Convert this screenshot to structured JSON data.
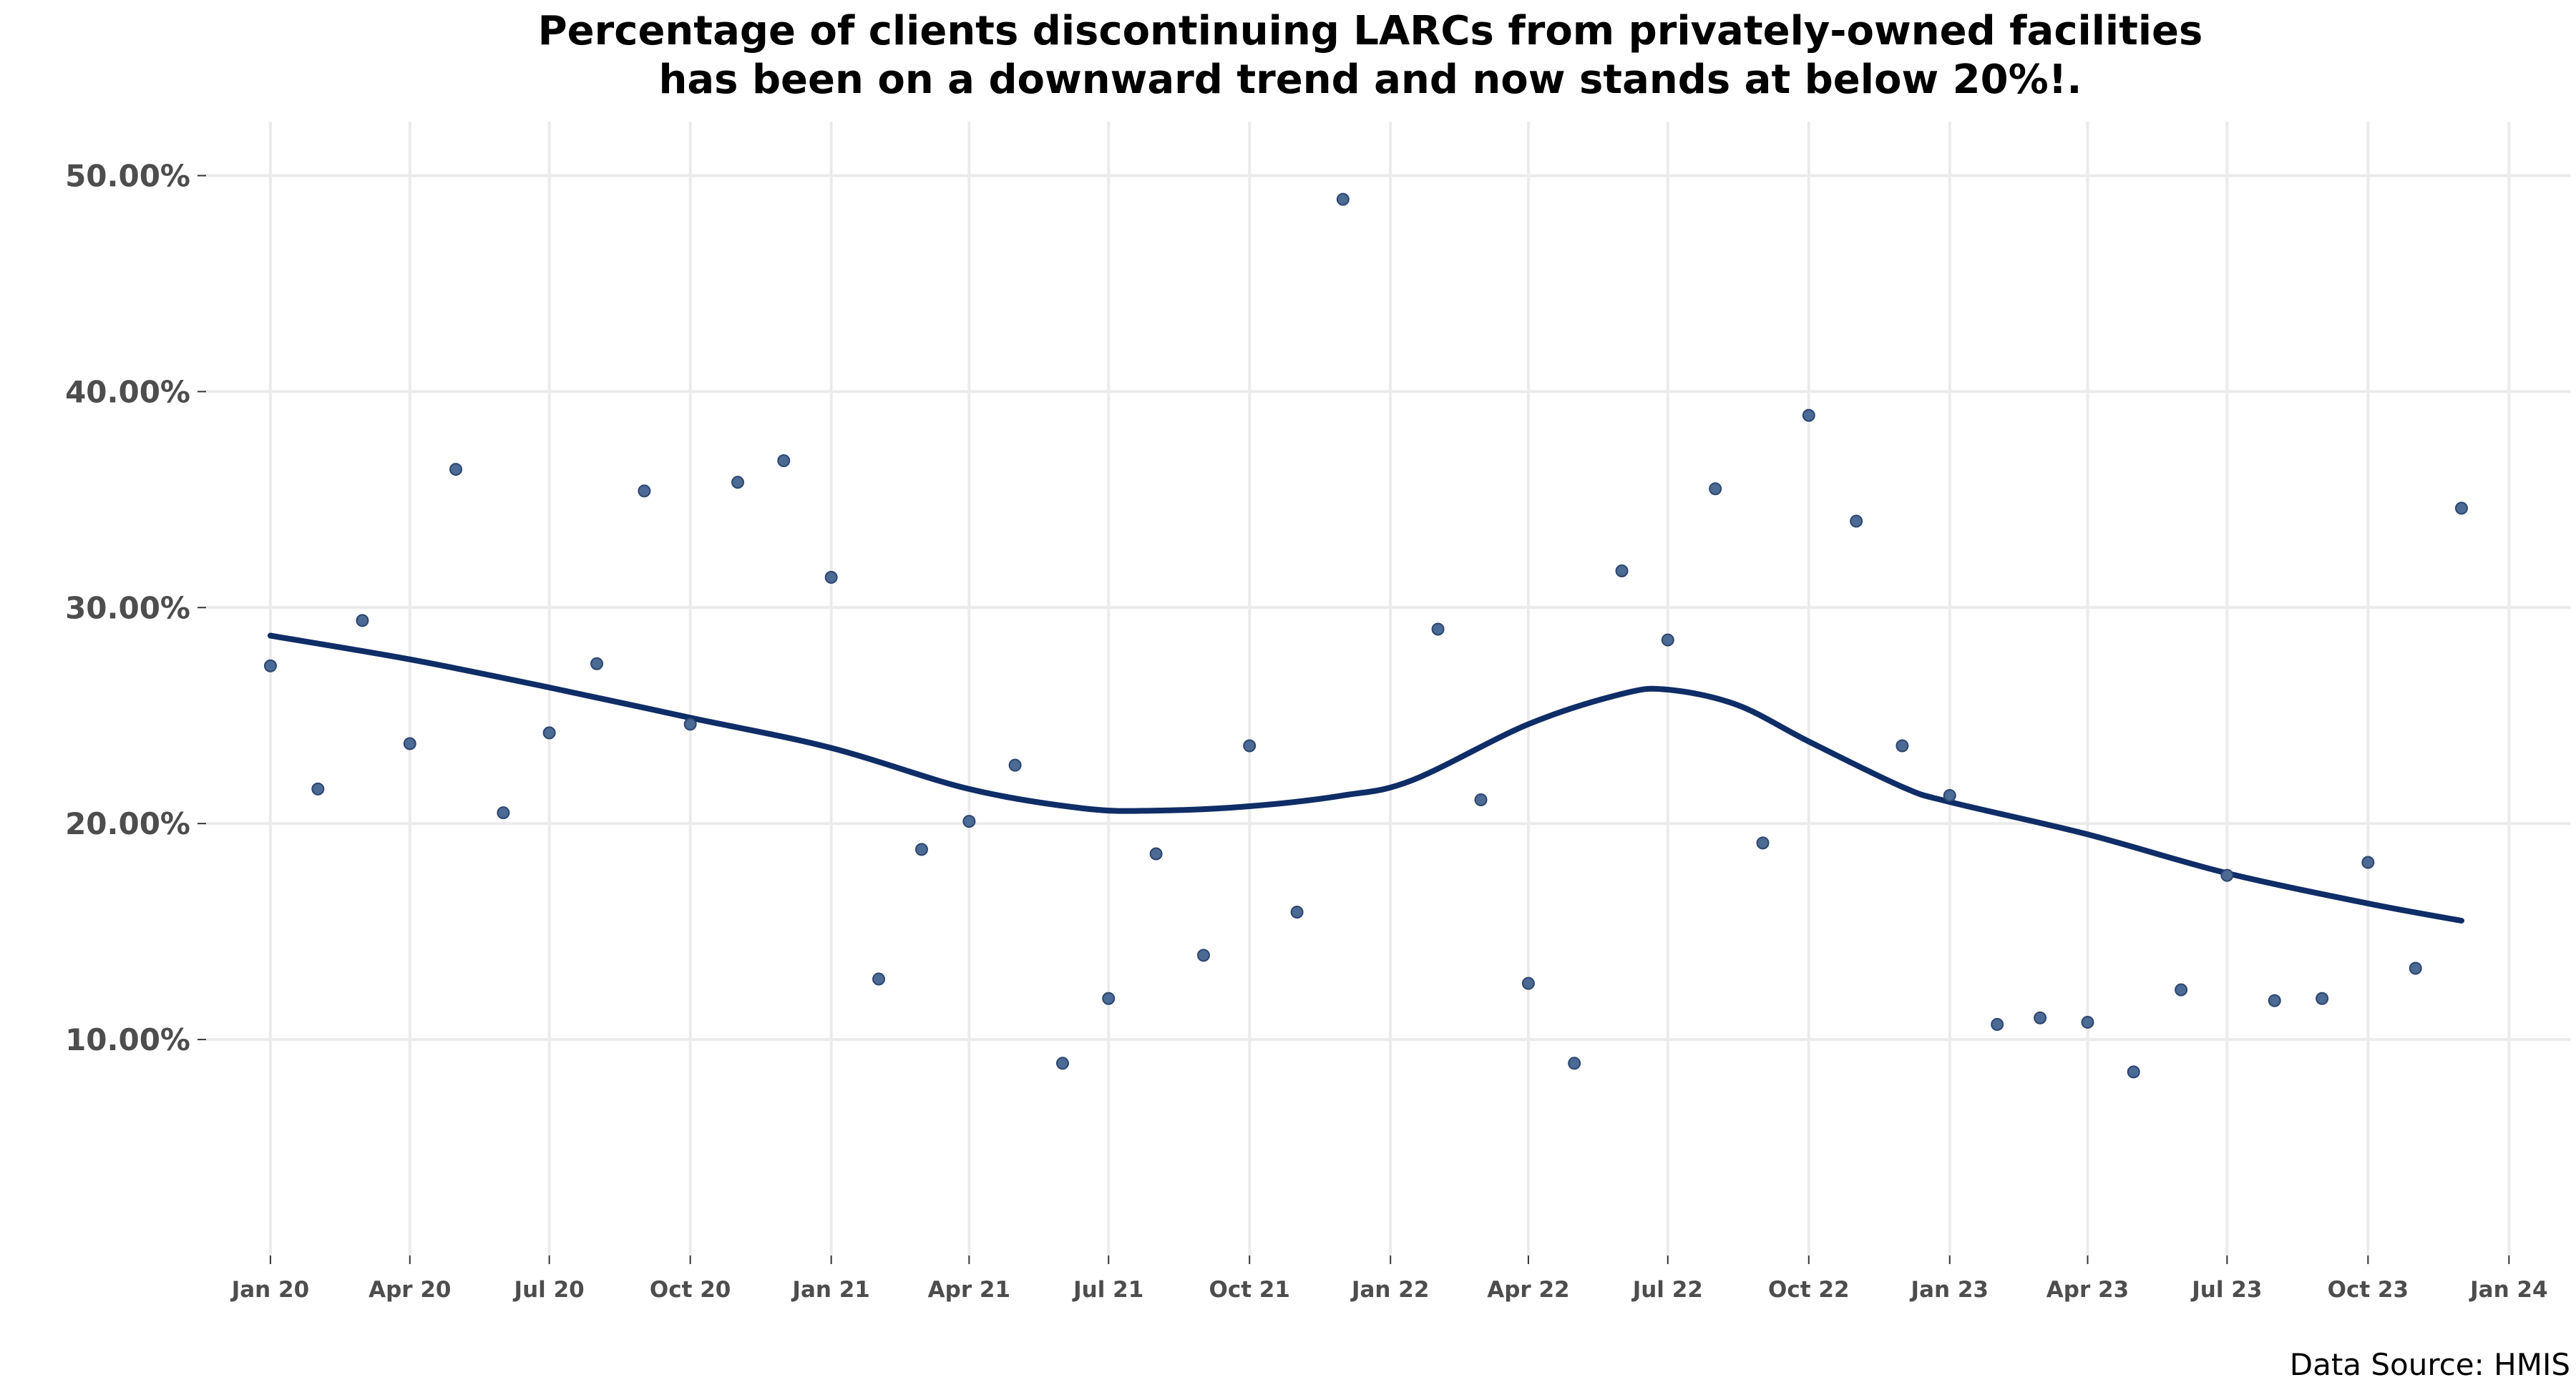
{
  "chart_data": {
    "type": "scatter",
    "title_lines": [
      "Percentage of clients discontinuing LARCs from privately-owned facilities",
      "has been on a downward trend and now stands at below 20%!."
    ],
    "xlabel": "",
    "ylabel": "",
    "caption": "Data Source: HMIS",
    "x_range": [
      "2019-11-20",
      "2024-02-10"
    ],
    "y_range": [
      0.0,
      0.525
    ],
    "grid": true,
    "x_ticks": [
      {
        "date": "2020-01-01",
        "label": "Jan 20"
      },
      {
        "date": "2020-04-01",
        "label": "Apr 20"
      },
      {
        "date": "2020-07-01",
        "label": "Jul 20"
      },
      {
        "date": "2020-10-01",
        "label": "Oct 20"
      },
      {
        "date": "2021-01-01",
        "label": "Jan 21"
      },
      {
        "date": "2021-04-01",
        "label": "Apr 21"
      },
      {
        "date": "2021-07-01",
        "label": "Jul 21"
      },
      {
        "date": "2021-10-01",
        "label": "Oct 21"
      },
      {
        "date": "2022-01-01",
        "label": "Jan 22"
      },
      {
        "date": "2022-04-01",
        "label": "Apr 22"
      },
      {
        "date": "2022-07-01",
        "label": "Jul 22"
      },
      {
        "date": "2022-10-01",
        "label": "Oct 22"
      },
      {
        "date": "2023-01-01",
        "label": "Jan 23"
      },
      {
        "date": "2023-04-01",
        "label": "Apr 23"
      },
      {
        "date": "2023-07-01",
        "label": "Jul 23"
      },
      {
        "date": "2023-10-01",
        "label": "Oct 23"
      },
      {
        "date": "2024-01-01",
        "label": "Jan 24"
      }
    ],
    "y_ticks": [
      {
        "value": 0.1,
        "label": "10.00%"
      },
      {
        "value": 0.2,
        "label": "20.00%"
      },
      {
        "value": 0.3,
        "label": "30.00%"
      },
      {
        "value": 0.4,
        "label": "40.00%"
      },
      {
        "value": 0.5,
        "label": "50.00%"
      }
    ],
    "points": [
      {
        "x": "2020-01-01",
        "y": 0.273
      },
      {
        "x": "2020-02-01",
        "y": 0.216
      },
      {
        "x": "2020-03-01",
        "y": 0.294
      },
      {
        "x": "2020-04-01",
        "y": 0.237
      },
      {
        "x": "2020-05-01",
        "y": 0.364
      },
      {
        "x": "2020-06-01",
        "y": 0.205
      },
      {
        "x": "2020-07-01",
        "y": 0.242
      },
      {
        "x": "2020-08-01",
        "y": 0.274
      },
      {
        "x": "2020-09-01",
        "y": 0.354
      },
      {
        "x": "2020-10-01",
        "y": 0.246
      },
      {
        "x": "2020-11-01",
        "y": 0.358
      },
      {
        "x": "2020-12-01",
        "y": 0.368
      },
      {
        "x": "2021-01-01",
        "y": 0.314
      },
      {
        "x": "2021-02-01",
        "y": 0.128
      },
      {
        "x": "2021-03-01",
        "y": 0.188
      },
      {
        "x": "2021-04-01",
        "y": 0.201
      },
      {
        "x": "2021-05-01",
        "y": 0.227
      },
      {
        "x": "2021-06-01",
        "y": 0.089
      },
      {
        "x": "2021-07-01",
        "y": 0.119
      },
      {
        "x": "2021-08-01",
        "y": 0.186
      },
      {
        "x": "2021-09-01",
        "y": 0.139
      },
      {
        "x": "2021-10-01",
        "y": 0.236
      },
      {
        "x": "2021-11-01",
        "y": 0.159
      },
      {
        "x": "2021-12-01",
        "y": 0.489
      },
      {
        "x": "2022-02-01",
        "y": 0.29
      },
      {
        "x": "2022-03-01",
        "y": 0.211
      },
      {
        "x": "2022-04-01",
        "y": 0.126
      },
      {
        "x": "2022-05-01",
        "y": 0.089
      },
      {
        "x": "2022-06-01",
        "y": 0.317
      },
      {
        "x": "2022-07-01",
        "y": 0.285
      },
      {
        "x": "2022-08-01",
        "y": 0.355
      },
      {
        "x": "2022-09-01",
        "y": 0.191
      },
      {
        "x": "2022-10-01",
        "y": 0.389
      },
      {
        "x": "2022-11-01",
        "y": 0.34
      },
      {
        "x": "2022-12-01",
        "y": 0.236
      },
      {
        "x": "2023-01-01",
        "y": 0.213
      },
      {
        "x": "2023-02-01",
        "y": 0.107
      },
      {
        "x": "2023-03-01",
        "y": 0.11
      },
      {
        "x": "2023-04-01",
        "y": 0.108
      },
      {
        "x": "2023-05-01",
        "y": 0.085
      },
      {
        "x": "2023-06-01",
        "y": 0.123
      },
      {
        "x": "2023-07-01",
        "y": 0.176
      },
      {
        "x": "2023-08-01",
        "y": 0.118
      },
      {
        "x": "2023-09-01",
        "y": 0.119
      },
      {
        "x": "2023-10-01",
        "y": 0.182
      },
      {
        "x": "2023-11-01",
        "y": 0.133
      },
      {
        "x": "2023-12-01",
        "y": 0.346
      }
    ],
    "trend": {
      "type": "smoothed line",
      "x": [
        "2020-01-01",
        "2020-04-01",
        "2020-07-01",
        "2020-10-01",
        "2021-01-01",
        "2021-04-01",
        "2021-06-15",
        "2021-08-01",
        "2021-10-01",
        "2021-12-01",
        "2022-01-15",
        "2022-04-01",
        "2022-06-01",
        "2022-07-01",
        "2022-08-15",
        "2022-10-01",
        "2022-12-01",
        "2023-01-01",
        "2023-04-01",
        "2023-07-01",
        "2023-10-01",
        "2023-12-01"
      ],
      "y": [
        0.287,
        0.276,
        0.263,
        0.249,
        0.235,
        0.216,
        0.207,
        0.206,
        0.208,
        0.213,
        0.22,
        0.246,
        0.26,
        0.262,
        0.255,
        0.238,
        0.217,
        0.21,
        0.195,
        0.177,
        0.163,
        0.155
      ]
    },
    "colors": {
      "points": "#4b6a94",
      "trend": "#0f2d66",
      "grid": "#ebebeb",
      "tick_text": "#4d4d4d"
    }
  }
}
